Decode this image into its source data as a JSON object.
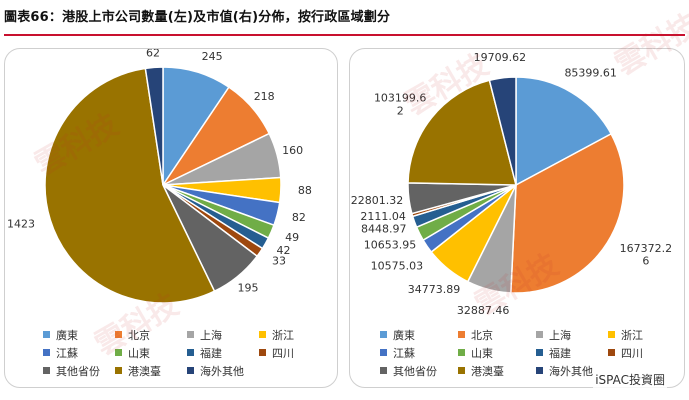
{
  "title": "圖表66：港股上市公司數量(左)及市值(右)分佈，按行政區域劃分",
  "watermark": {
    "text": "雲科技",
    "color": "#c82828"
  },
  "watermark_footer": "iSPAC投資圈",
  "chart_data": [
    {
      "type": "pie",
      "title": "港股上市公司數量",
      "categories": [
        "廣東",
        "北京",
        "上海",
        "浙江",
        "江蘇",
        "山東",
        "福建",
        "四川",
        "其他省份",
        "港澳臺",
        "海外其他"
      ],
      "colors": [
        "#5b9bd5",
        "#ed7d31",
        "#a5a5a5",
        "#ffc000",
        "#4472c4",
        "#70ad47",
        "#255e91",
        "#9e480e",
        "#636363",
        "#997300",
        "#264478"
      ],
      "values": [
        245,
        218,
        160,
        88,
        82,
        49,
        42,
        33,
        195,
        1423,
        62
      ],
      "data_labels": [
        "245",
        "218",
        "160",
        "88",
        "82",
        "49",
        "42",
        "33",
        "195",
        "1423",
        "62"
      ],
      "start_angle_deg": 0,
      "legend_position": "bottom"
    },
    {
      "type": "pie",
      "title": "港股上市公司市值",
      "categories": [
        "廣東",
        "北京",
        "上海",
        "浙江",
        "江蘇",
        "山東",
        "福建",
        "四川",
        "其他省份",
        "港澳臺",
        "海外其他"
      ],
      "colors": [
        "#5b9bd5",
        "#ed7d31",
        "#a5a5a5",
        "#ffc000",
        "#4472c4",
        "#70ad47",
        "#255e91",
        "#9e480e",
        "#636363",
        "#997300",
        "#264478"
      ],
      "values": [
        85399.61,
        167372.26,
        32887.46,
        34773.89,
        10575.03,
        10653.95,
        8448.97,
        2111.04,
        22801.32,
        103199.62,
        19709.62
      ],
      "data_labels": [
        "85399.61",
        "167372.26",
        "32887.46",
        "34773.89",
        "10575.03",
        "10653.95",
        "8448.97",
        "2111.04",
        "22801.32",
        "103199.62",
        "19709.62"
      ],
      "start_angle_deg": 0,
      "legend_position": "bottom"
    }
  ]
}
